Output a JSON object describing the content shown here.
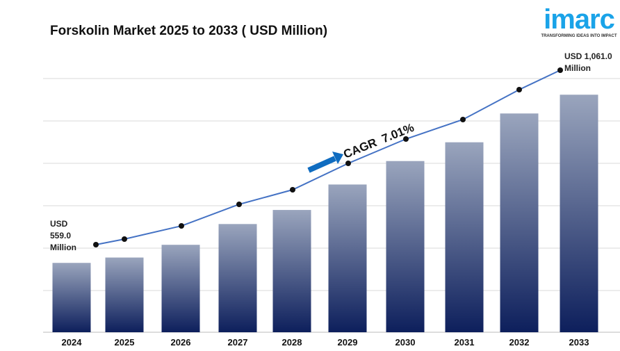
{
  "title": "Forskolin Market 2025 to 2033 ( USD Million)",
  "logo": {
    "word": "imarc",
    "tagline": "TRANSFORMING IDEAS INTO IMPACT",
    "color": "#1aa3e8"
  },
  "annotations": {
    "start": [
      "USD",
      "559.0",
      "Million"
    ],
    "end": [
      "USD 1,061.0",
      "Million"
    ],
    "cagr": "CAGR  7.01%"
  },
  "chart_data": {
    "type": "bar",
    "title": "Forskolin Market 2025 to 2033 ( USD Million)",
    "xlabel": "",
    "ylabel": "",
    "categories": [
      "2024",
      "2025",
      "2026",
      "2027",
      "2028",
      "2029",
      "2030",
      "2031",
      "2032",
      "2033"
    ],
    "values": [
      559.0,
      575,
      613,
      675,
      717,
      793,
      863,
      919,
      1005,
      1061.0
    ],
    "overlay_line": true,
    "grid": true,
    "colors": {
      "bar_top": "#9aa5bd",
      "bar_bottom": "#0d1f5c",
      "line": "#4472c4",
      "arrow": "#0f6cc0"
    }
  }
}
